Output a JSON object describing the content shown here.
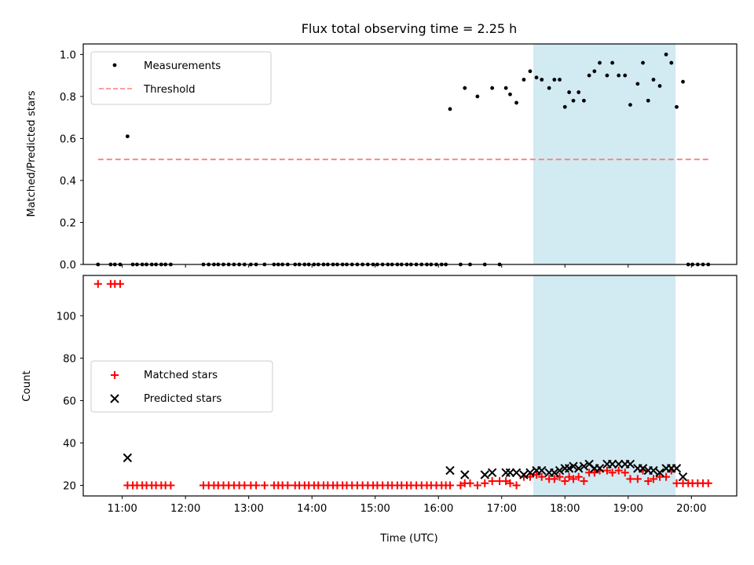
{
  "title": "Flux total observing time = 2.25 h",
  "xlabel": "Time (UTC)",
  "x_ticks": [
    "11:00",
    "12:00",
    "13:00",
    "14:00",
    "15:00",
    "16:00",
    "17:00",
    "18:00",
    "19:00",
    "20:00"
  ],
  "colors": {
    "measurements": "#000000",
    "threshold": "#ff7f7f",
    "matched": "#ff0000",
    "predicted": "#000000",
    "shade": "#add8e6"
  },
  "chart_data": [
    {
      "type": "scatter",
      "ylabel": "Matched/Predicted stars",
      "xlim": [
        "10:23",
        "20:43"
      ],
      "ylim": [
        0,
        1.05
      ],
      "y_ticks": [
        "0.0",
        "0.2",
        "0.4",
        "0.6",
        "0.8",
        "1.0"
      ],
      "legend": {
        "position": "upper-left",
        "entries": [
          "Measurements",
          "Threshold"
        ]
      },
      "shaded_interval": [
        "17:30",
        "19:45"
      ],
      "threshold": {
        "name": "Threshold",
        "value": 0.5,
        "x_range": [
          "10:37",
          "20:17"
        ],
        "style": "dashed"
      },
      "series": [
        {
          "name": "Measurements",
          "x": [
            "10:37",
            "10:49",
            "10:53",
            "10:58",
            "11:05",
            "11:10",
            "11:14",
            "11:19",
            "11:23",
            "11:28",
            "11:32",
            "11:37",
            "11:41",
            "11:46",
            "12:17",
            "12:22",
            "12:27",
            "12:31",
            "12:36",
            "12:41",
            "12:46",
            "12:51",
            "12:56",
            "13:02",
            "13:07",
            "13:15",
            "13:24",
            "13:28",
            "13:32",
            "13:37",
            "13:44",
            "13:48",
            "13:53",
            "13:57",
            "14:02",
            "14:06",
            "14:11",
            "14:15",
            "14:20",
            "14:24",
            "14:29",
            "14:33",
            "14:38",
            "14:43",
            "14:48",
            "14:53",
            "14:58",
            "15:02",
            "15:07",
            "15:12",
            "15:16",
            "15:21",
            "15:25",
            "15:30",
            "15:34",
            "15:39",
            "15:44",
            "15:49",
            "15:53",
            "15:58",
            "16:03",
            "16:07",
            "16:11",
            "16:21",
            "16:25",
            "16:30",
            "16:37",
            "16:44",
            "16:51",
            "16:58",
            "17:04",
            "17:08",
            "17:14",
            "17:21",
            "17:27",
            "17:33",
            "17:38",
            "17:45",
            "17:50",
            "17:55",
            "18:00",
            "18:04",
            "18:08",
            "18:13",
            "18:18",
            "18:23",
            "18:28",
            "18:33",
            "18:40",
            "18:45",
            "18:51",
            "18:57",
            "19:02",
            "19:09",
            "19:14",
            "19:19",
            "19:24",
            "19:30",
            "19:36",
            "19:41",
            "19:46",
            "19:52",
            "19:57",
            "20:01",
            "20:06",
            "20:11",
            "20:16"
          ],
          "values": [
            0,
            0,
            0,
            0,
            0.61,
            0,
            0,
            0,
            0,
            0,
            0,
            0,
            0,
            0,
            0,
            0,
            0,
            0,
            0,
            0,
            0,
            0,
            0,
            0,
            0,
            0,
            0,
            0,
            0,
            0,
            0,
            0,
            0,
            0,
            0,
            0,
            0,
            0,
            0,
            0,
            0,
            0,
            0,
            0,
            0,
            0,
            0,
            0,
            0,
            0,
            0,
            0,
            0,
            0,
            0,
            0,
            0,
            0,
            0,
            0,
            0,
            0,
            0.74,
            0,
            0.84,
            0,
            0.8,
            0,
            0.84,
            0,
            0.84,
            0.81,
            0.77,
            0.88,
            0.92,
            0.89,
            0.88,
            0.84,
            0.88,
            0.88,
            0.75,
            0.82,
            0.78,
            0.82,
            0.78,
            0.9,
            0.92,
            0.96,
            0.9,
            0.96,
            0.9,
            0.9,
            0.76,
            0.86,
            0.96,
            0.78,
            0.88,
            0.85,
            1.0,
            0.96,
            0.75,
            0.87,
            0,
            0,
            0,
            0,
            0
          ]
        }
      ]
    },
    {
      "type": "scatter",
      "ylabel": "Count",
      "xlim": [
        "10:23",
        "20:43"
      ],
      "ylim": [
        15,
        119
      ],
      "y_ticks": [
        "20",
        "40",
        "60",
        "80",
        "100"
      ],
      "legend": {
        "position": "center-left",
        "entries": [
          "Matched stars",
          "Predicted stars"
        ]
      },
      "shaded_interval": [
        "17:30",
        "19:45"
      ],
      "series": [
        {
          "name": "Matched stars",
          "marker": "plus",
          "x": [
            "10:37",
            "10:49",
            "10:53",
            "10:58",
            "11:05",
            "11:10",
            "11:14",
            "11:19",
            "11:23",
            "11:28",
            "11:32",
            "11:37",
            "11:41",
            "11:46",
            "12:17",
            "12:22",
            "12:27",
            "12:31",
            "12:36",
            "12:41",
            "12:46",
            "12:51",
            "12:56",
            "13:02",
            "13:07",
            "13:15",
            "13:24",
            "13:28",
            "13:32",
            "13:37",
            "13:44",
            "13:48",
            "13:53",
            "13:57",
            "14:02",
            "14:06",
            "14:11",
            "14:15",
            "14:20",
            "14:24",
            "14:29",
            "14:33",
            "14:38",
            "14:43",
            "14:48",
            "14:53",
            "14:58",
            "15:02",
            "15:07",
            "15:12",
            "15:16",
            "15:21",
            "15:25",
            "15:30",
            "15:34",
            "15:39",
            "15:44",
            "15:49",
            "15:53",
            "15:58",
            "16:03",
            "16:07",
            "16:11",
            "16:21",
            "16:25",
            "16:30",
            "16:37",
            "16:44",
            "16:51",
            "16:58",
            "17:04",
            "17:08",
            "17:14",
            "17:21",
            "17:27",
            "17:33",
            "17:38",
            "17:45",
            "17:50",
            "17:55",
            "18:00",
            "18:04",
            "18:08",
            "18:13",
            "18:18",
            "18:23",
            "18:28",
            "18:33",
            "18:40",
            "18:45",
            "18:51",
            "18:57",
            "19:02",
            "19:09",
            "19:14",
            "19:19",
            "19:24",
            "19:30",
            "19:36",
            "19:41",
            "19:46",
            "19:52",
            "19:57",
            "20:01",
            "20:06",
            "20:11",
            "20:16"
          ],
          "values": [
            115,
            115,
            115,
            115,
            20,
            20,
            20,
            20,
            20,
            20,
            20,
            20,
            20,
            20,
            20,
            20,
            20,
            20,
            20,
            20,
            20,
            20,
            20,
            20,
            20,
            20,
            20,
            20,
            20,
            20,
            20,
            20,
            20,
            20,
            20,
            20,
            20,
            20,
            20,
            20,
            20,
            20,
            20,
            20,
            20,
            20,
            20,
            20,
            20,
            20,
            20,
            20,
            20,
            20,
            20,
            20,
            20,
            20,
            20,
            20,
            20,
            20,
            20,
            20,
            21,
            21,
            20,
            21,
            22,
            22,
            22,
            21,
            20,
            24,
            24,
            25,
            24,
            23,
            23,
            24,
            22,
            24,
            23,
            24,
            22,
            26,
            26,
            27,
            27,
            26,
            27,
            26,
            23,
            23,
            27,
            22,
            23,
            24,
            24,
            27,
            21,
            21,
            21,
            21,
            21,
            21,
            21
          ]
        },
        {
          "name": "Predicted stars",
          "marker": "x",
          "x": [
            "11:05",
            "16:11",
            "16:25",
            "16:44",
            "16:51",
            "17:04",
            "17:08",
            "17:14",
            "17:21",
            "17:27",
            "17:33",
            "17:38",
            "17:45",
            "17:50",
            "17:55",
            "18:00",
            "18:04",
            "18:08",
            "18:13",
            "18:18",
            "18:23",
            "18:28",
            "18:33",
            "18:40",
            "18:45",
            "18:51",
            "18:57",
            "19:02",
            "19:09",
            "19:14",
            "19:19",
            "19:24",
            "19:30",
            "19:36",
            "19:41",
            "19:46",
            "19:52"
          ],
          "values": [
            33,
            27,
            25,
            25,
            26,
            26,
            26,
            26,
            25,
            26,
            27,
            27,
            26,
            26,
            27,
            28,
            28,
            29,
            28,
            29,
            30,
            28,
            28,
            30,
            30,
            30,
            30,
            30,
            28,
            28,
            27,
            27,
            26,
            28,
            28,
            28,
            24
          ]
        }
      ]
    }
  ]
}
